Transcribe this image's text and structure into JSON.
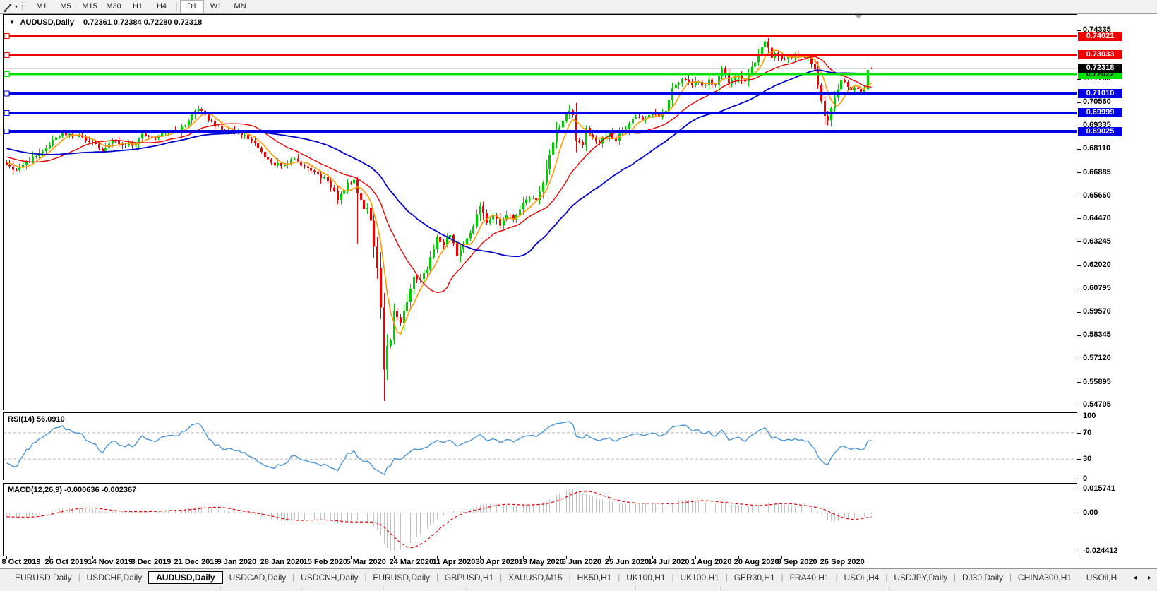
{
  "toolbar": {
    "tool_icon": "line-draw-tool",
    "dropdown_glyph": "▾",
    "timeframes": [
      "M1",
      "M5",
      "M15",
      "M30",
      "H1",
      "H4",
      "D1",
      "W1",
      "MN"
    ],
    "active_timeframe": "D1"
  },
  "chart": {
    "collapse_glyph": "▼",
    "symbol_title": "AUDUSD,Daily",
    "ohlc_text": "0.72361 0.72384 0.72280 0.72318",
    "current_price": 0.72318,
    "current_price_label": "0.72318",
    "price_ticks": [
      "0.74335",
      "0.71785",
      "0.70560",
      "0.69335",
      "0.68110",
      "0.66885",
      "0.65660",
      "0.64470",
      "0.63245",
      "0.62020",
      "0.60795",
      "0.59570",
      "0.58345",
      "0.57120",
      "0.55895",
      "0.54705"
    ],
    "hlines": [
      {
        "price": 0.74021,
        "label": "0.74021",
        "color": "#ee0000",
        "text_color": "#ffffff",
        "width": 3
      },
      {
        "price": 0.73033,
        "label": "0.73033",
        "color": "#ee0000",
        "text_color": "#ffffff",
        "width": 3
      },
      {
        "price": 0.72022,
        "label": "0.72022",
        "color": "#00e000",
        "text_color": "#000000",
        "width": 3
      },
      {
        "price": 0.7101,
        "label": "0.71010",
        "color": "#0000e6",
        "text_color": "#ffffff",
        "width": 4
      },
      {
        "price": 0.69999,
        "label": "0.69999",
        "color": "#0000e6",
        "text_color": "#ffffff",
        "width": 4
      },
      {
        "price": 0.69025,
        "label": "0.69025",
        "color": "#0000e6",
        "text_color": "#ffffff",
        "width": 4
      }
    ]
  },
  "chart_data": {
    "type": "candlestick",
    "symbol": "AUDUSD",
    "timeframe": "Daily",
    "bars": 262,
    "ylim": [
      0.54705,
      0.7513
    ],
    "up_color": "#00cc00",
    "down_color": "#f20000",
    "last_ohlc": {
      "open": 0.72361,
      "high": 0.72384,
      "low": 0.7228,
      "close": 0.72318
    },
    "close_anchors": [
      [
        0,
        0.673
      ],
      [
        2,
        0.67
      ],
      [
        6,
        0.6745
      ],
      [
        10,
        0.679
      ],
      [
        13,
        0.683
      ],
      [
        17,
        0.6895
      ],
      [
        20,
        0.688
      ],
      [
        24,
        0.6855
      ],
      [
        26,
        0.684
      ],
      [
        29,
        0.68
      ],
      [
        33,
        0.6855
      ],
      [
        36,
        0.683
      ],
      [
        39,
        0.684
      ],
      [
        41,
        0.689
      ],
      [
        44,
        0.687
      ],
      [
        48,
        0.6895
      ],
      [
        52,
        0.6905
      ],
      [
        55,
        0.696
      ],
      [
        58,
        0.702
      ],
      [
        60,
        0.699
      ],
      [
        63,
        0.693
      ],
      [
        65,
        0.691
      ],
      [
        68,
        0.6905
      ],
      [
        71,
        0.6885
      ],
      [
        74,
        0.6855
      ],
      [
        78,
        0.6765
      ],
      [
        81,
        0.6725
      ],
      [
        84,
        0.673
      ],
      [
        87,
        0.676
      ],
      [
        91,
        0.671
      ],
      [
        94,
        0.668
      ],
      [
        97,
        0.664
      ],
      [
        100,
        0.6545
      ],
      [
        103,
        0.6635
      ],
      [
        105,
        0.665
      ],
      [
        106,
        0.658
      ],
      [
        108,
        0.6495
      ],
      [
        109,
        0.6505
      ],
      [
        110,
        0.6435
      ],
      [
        111,
        0.63
      ],
      [
        112,
        0.619
      ],
      [
        113,
        0.598
      ],
      [
        114,
        0.5655
      ],
      [
        115,
        0.578
      ],
      [
        116,
        0.581
      ],
      [
        117,
        0.5965
      ],
      [
        118,
        0.593
      ],
      [
        119,
        0.59
      ],
      [
        121,
        0.601
      ],
      [
        123,
        0.614
      ],
      [
        125,
        0.613
      ],
      [
        127,
        0.618
      ],
      [
        130,
        0.635
      ],
      [
        132,
        0.631
      ],
      [
        134,
        0.636
      ],
      [
        136,
        0.625
      ],
      [
        138,
        0.631
      ],
      [
        140,
        0.637
      ],
      [
        143,
        0.651
      ],
      [
        145,
        0.6425
      ],
      [
        147,
        0.6465
      ],
      [
        149,
        0.641
      ],
      [
        151,
        0.6465
      ],
      [
        153,
        0.644
      ],
      [
        156,
        0.653
      ],
      [
        158,
        0.655
      ],
      [
        160,
        0.6545
      ],
      [
        162,
        0.6635
      ],
      [
        164,
        0.678
      ],
      [
        166,
        0.691
      ],
      [
        168,
        0.696
      ],
      [
        170,
        0.701
      ],
      [
        171,
        0.699
      ],
      [
        172,
        0.6855
      ],
      [
        174,
        0.683
      ],
      [
        175,
        0.692
      ],
      [
        177,
        0.687
      ],
      [
        179,
        0.684
      ],
      [
        182,
        0.6895
      ],
      [
        184,
        0.6855
      ],
      [
        186,
        0.691
      ],
      [
        188,
        0.6945
      ],
      [
        190,
        0.698
      ],
      [
        192,
        0.6965
      ],
      [
        195,
        0.7
      ],
      [
        197,
        0.698
      ],
      [
        199,
        0.701
      ],
      [
        201,
        0.713
      ],
      [
        203,
        0.7155
      ],
      [
        205,
        0.7175
      ],
      [
        207,
        0.7145
      ],
      [
        208,
        0.716
      ],
      [
        210,
        0.714
      ],
      [
        212,
        0.7175
      ],
      [
        214,
        0.7145
      ],
      [
        216,
        0.723
      ],
      [
        218,
        0.716
      ],
      [
        220,
        0.7185
      ],
      [
        221,
        0.7195
      ],
      [
        223,
        0.7165
      ],
      [
        225,
        0.724
      ],
      [
        227,
        0.731
      ],
      [
        229,
        0.7375
      ],
      [
        230,
        0.734
      ],
      [
        231,
        0.7285
      ],
      [
        232,
        0.7315
      ],
      [
        234,
        0.728
      ],
      [
        236,
        0.7295
      ],
      [
        238,
        0.7305
      ],
      [
        240,
        0.73
      ],
      [
        242,
        0.729
      ],
      [
        243,
        0.7255
      ],
      [
        244,
        0.7225
      ],
      [
        245,
        0.7145
      ],
      [
        246,
        0.706
      ],
      [
        247,
        0.6985
      ],
      [
        248,
        0.696
      ],
      [
        249,
        0.7025
      ],
      [
        250,
        0.708
      ],
      [
        251,
        0.7125
      ],
      [
        252,
        0.717
      ],
      [
        253,
        0.716
      ],
      [
        254,
        0.7135
      ],
      [
        255,
        0.712
      ],
      [
        256,
        0.7135
      ],
      [
        257,
        0.7125
      ],
      [
        258,
        0.711
      ],
      [
        259,
        0.7125
      ],
      [
        260,
        0.7225
      ],
      [
        261,
        0.72318
      ]
    ],
    "special_wicks": {
      "106": {
        "low": 0.6315
      },
      "113": {
        "low": 0.592
      },
      "114": {
        "low": 0.549
      },
      "170": {
        "high": 0.7042
      },
      "229": {
        "high": 0.7405
      },
      "248": {
        "low": 0.6935
      },
      "261": {
        "open": 0.72361,
        "high": 0.72384,
        "low": 0.7228
      }
    },
    "x_labels": [
      {
        "bar": 0,
        "label": "8 Oct 2019"
      },
      {
        "bar": 13,
        "label": "26 Oct 2019"
      },
      {
        "bar": 26,
        "label": "14 Nov 2019"
      },
      {
        "bar": 39,
        "label": "3 Dec 2019"
      },
      {
        "bar": 52,
        "label": "21 Dec 2019"
      },
      {
        "bar": 65,
        "label": "9 Jan 2020"
      },
      {
        "bar": 78,
        "label": "28 Jan 2020"
      },
      {
        "bar": 91,
        "label": "15 Feb 2020"
      },
      {
        "bar": 104,
        "label": "5 Mar 2020"
      },
      {
        "bar": 117,
        "label": "24 Mar 2020"
      },
      {
        "bar": 130,
        "label": "11 Apr 2020"
      },
      {
        "bar": 143,
        "label": "30 Apr 2020"
      },
      {
        "bar": 156,
        "label": "19 May 2020"
      },
      {
        "bar": 169,
        "label": "6 Jun 2020"
      },
      {
        "bar": 182,
        "label": "25 Jun 2020"
      },
      {
        "bar": 195,
        "label": "14 Jul 2020"
      },
      {
        "bar": 208,
        "label": "1 Aug 2020"
      },
      {
        "bar": 221,
        "label": "20 Aug 2020"
      },
      {
        "bar": 234,
        "label": "8 Sep 2020"
      },
      {
        "bar": 247,
        "label": "26 Sep 2020"
      }
    ],
    "moving_averages": [
      {
        "name": "fast",
        "window": 6,
        "color": "#ff9c00"
      },
      {
        "name": "medium",
        "window": 20,
        "color": "#ee0000"
      },
      {
        "name": "slow",
        "window": 45,
        "color": "#0000cc"
      }
    ]
  },
  "rsi_panel": {
    "title": "RSI(14) 56.0910",
    "period": 14,
    "value": 56.091,
    "levels": [
      70,
      30
    ],
    "axis_labels": [
      "100",
      "70",
      "30",
      "0"
    ],
    "line_color": "#4a96d9"
  },
  "macd_panel": {
    "title": "MACD(12,26,9) -0.000636 -0.002367",
    "params": "12,26,9",
    "value": -0.000636,
    "signal": -0.002367,
    "axis_labels": [
      "0.015741",
      "0.00",
      "-0.024412"
    ],
    "hist_color": "#c2c2c2",
    "signal_color": "#ee0000"
  },
  "tabs": {
    "items": [
      "EURUSD,Daily",
      "USDCHF,Daily",
      "AUDUSD,Daily",
      "USDCAD,Daily",
      "USDCNH,Daily",
      "EURUSD,Daily",
      "GBPUSD,H1",
      "XAUUSD,M15",
      "HK50,H1",
      "UK100,H1",
      "UK100,H1",
      "GER30,H1",
      "FRA40,H1",
      "USOil,H4",
      "USDJPY,Daily",
      "DJ30,Daily",
      "CHINA300,H1",
      "USOil,H"
    ],
    "active_index": 2,
    "scroll_left_glyph": "◂",
    "scroll_right_glyph": "▸"
  }
}
